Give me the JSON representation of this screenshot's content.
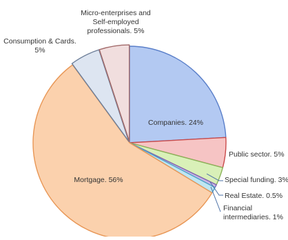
{
  "chart_data": {
    "type": "pie",
    "title": "",
    "slices": [
      {
        "label_lines": [
          "Companies. 24%"
        ],
        "value": 24,
        "fill": "#b3c9f2",
        "stroke": "#5a7fc9"
      },
      {
        "label_lines": [
          "Public sector. 5%"
        ],
        "value": 5,
        "fill": "#f6c4c4",
        "stroke": "#c94a4a"
      },
      {
        "label_lines": [
          "Special funding. 3%"
        ],
        "value": 3,
        "fill": "#d9f0b8",
        "stroke": "#8bb35a"
      },
      {
        "label_lines": [
          "Real Estate. 0.5%"
        ],
        "value": 0.5,
        "fill": "#c9b8e6",
        "stroke": "#7f62b3"
      },
      {
        "label_lines": [
          "Financial",
          "intermediaries. 1%"
        ],
        "value": 1,
        "fill": "#bfe6f2",
        "stroke": "#4fa6c9"
      },
      {
        "label_lines": [
          "Mortgage. 56%"
        ],
        "value": 56,
        "fill": "#fbd1ad",
        "stroke": "#e89655"
      },
      {
        "label_lines": [
          "Consumption & Cards.",
          "5%"
        ],
        "value": 5,
        "fill": "#dde5f1",
        "stroke": "#6e7f99"
      },
      {
        "label_lines": [
          "Micro-enterprises and",
          "Self-employed",
          "professionals. 5%"
        ],
        "value": 5,
        "fill": "#f1dede",
        "stroke": "#a26a6a"
      }
    ],
    "legend": "none"
  }
}
